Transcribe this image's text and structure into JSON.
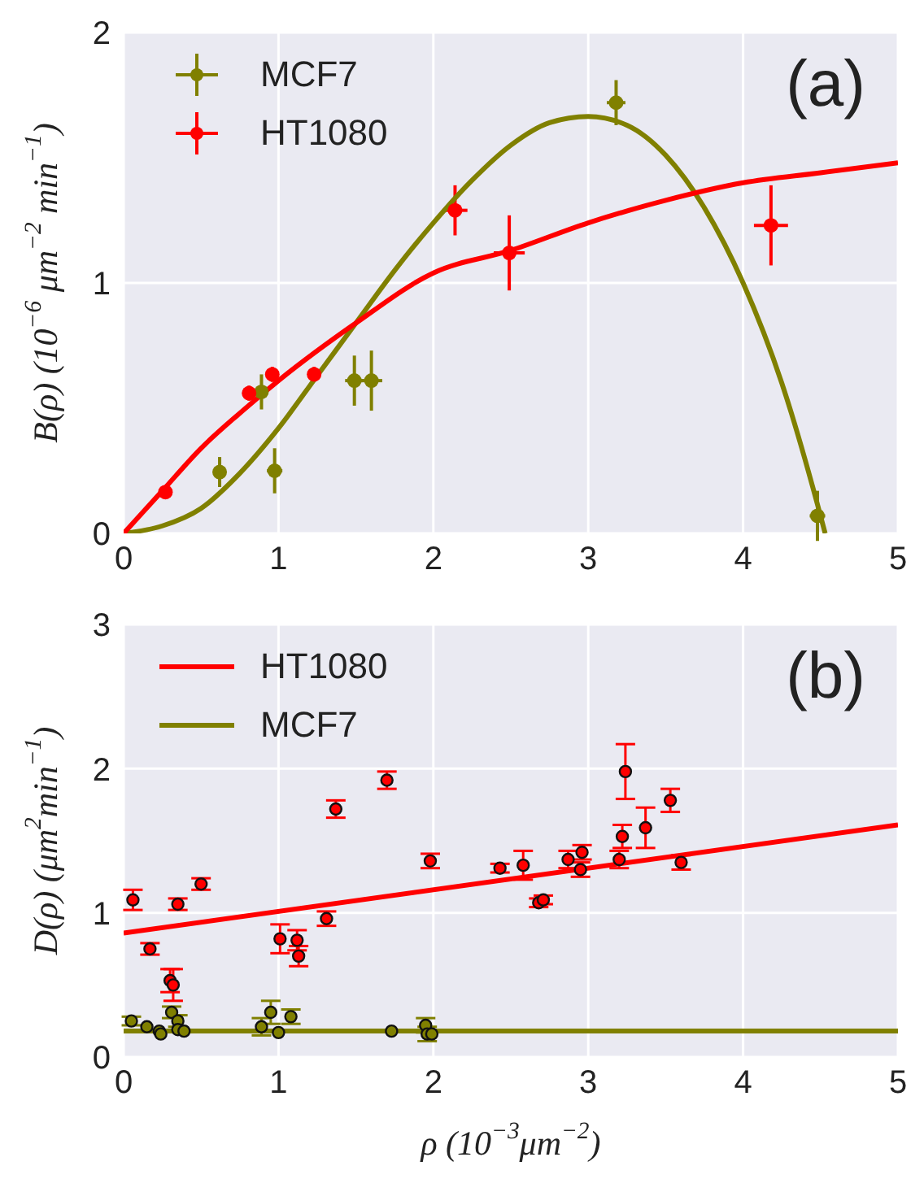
{
  "chart_data": [
    {
      "type": "scatter",
      "ylabel": "B(ρ)  (10$^{−6}$ μm$^{−2}$ min$^{−1}$)",
      "annotations": [
        "(a)"
      ],
      "xlim": [
        0,
        5
      ],
      "ylim": [
        0,
        2
      ],
      "xticks": [
        0,
        1,
        2,
        3,
        4,
        5
      ],
      "yticks": [
        0,
        1,
        2
      ],
      "grid": true,
      "legend": "top left",
      "series": [
        {
          "name": "MCF7",
          "marker": "circle",
          "color": "#808000",
          "x": [
            0.62,
            0.89,
            0.975,
            1.49,
            1.6,
            3.18,
            4.48
          ],
          "values": [
            0.245,
            0.565,
            0.25,
            0.61,
            0.61,
            1.72,
            0.07
          ],
          "errors": [
            0.06,
            0.07,
            0.09,
            0.1,
            0.12,
            0.09,
            0.1
          ],
          "xerrors": [
            null,
            null,
            0.05,
            0.06,
            0.07,
            0.06,
            0.05
          ]
        },
        {
          "name": "HT1080",
          "marker": "circle",
          "color": "#ff0000",
          "x": [
            0.27,
            0.81,
            0.96,
            1.23,
            2.14,
            2.49,
            4.18
          ],
          "values": [
            0.165,
            0.56,
            0.635,
            0.635,
            1.29,
            1.12,
            1.23
          ],
          "errors": [
            null,
            0.03,
            0.03,
            0.03,
            0.1,
            0.15,
            0.16
          ],
          "xerrors": [
            null,
            null,
            null,
            null,
            0.08,
            0.1,
            0.11
          ]
        },
        {
          "type": "line",
          "color": "#808000",
          "x": [
            0,
            0.25,
            0.5,
            0.75,
            1,
            1.25,
            1.5,
            1.75,
            2,
            2.25,
            2.5,
            2.75,
            3,
            3.25,
            3.5,
            3.75,
            4,
            4.25,
            4.5,
            4.53
          ],
          "values": [
            0,
            0.03,
            0.1,
            0.24,
            0.42,
            0.63,
            0.84,
            1.05,
            1.24,
            1.41,
            1.55,
            1.64,
            1.665,
            1.63,
            1.51,
            1.3,
            1.0,
            0.6,
            0.07,
            0
          ]
        },
        {
          "type": "line",
          "color": "#ff0000",
          "x": [
            0,
            0.25,
            0.5,
            0.75,
            1,
            1.5,
            2,
            2.5,
            3,
            3.5,
            4,
            4.5,
            5
          ],
          "values": [
            0,
            0.17,
            0.34,
            0.48,
            0.61,
            0.84,
            1.04,
            1.13,
            1.24,
            1.33,
            1.4,
            1.44,
            1.48
          ]
        }
      ]
    },
    {
      "type": "scatter",
      "ylabel": "D(ρ) (μm$^{2}$min$^{−1}$)",
      "xlabel": "ρ (10$^{−3}$μm$^{−2}$)",
      "annotations": [
        "(b)"
      ],
      "xlim": [
        0,
        5
      ],
      "ylim": [
        0,
        3
      ],
      "xticks": [
        0,
        1,
        2,
        3,
        4,
        5
      ],
      "yticks": [
        0,
        1,
        2,
        3
      ],
      "grid": true,
      "legend": "top left",
      "series": [
        {
          "marker": "circle",
          "color": "#ff0000",
          "x": [
            0.06,
            0.17,
            0.3,
            0.32,
            0.35,
            0.5,
            1.01,
            1.12,
            1.13,
            1.31,
            1.37,
            1.7,
            1.98,
            2.43,
            2.58,
            2.68,
            2.71,
            2.87,
            2.95,
            2.96,
            3.2,
            3.22,
            3.24,
            3.37,
            3.53,
            3.6
          ],
          "values": [
            1.09,
            0.75,
            0.53,
            0.5,
            1.06,
            1.2,
            0.82,
            0.81,
            0.7,
            0.96,
            1.72,
            1.92,
            1.36,
            1.31,
            1.33,
            1.07,
            1.09,
            1.37,
            1.3,
            1.42,
            1.37,
            1.53,
            1.98,
            1.59,
            1.78,
            1.35
          ],
          "errors": [
            0.07,
            0.04,
            0.08,
            0.11,
            0.04,
            0.04,
            0.1,
            0.07,
            0.07,
            0.05,
            0.06,
            0.06,
            0.05,
            0.03,
            0.1,
            0.03,
            0.03,
            0.06,
            0.05,
            0.05,
            0.06,
            0.08,
            0.19,
            0.14,
            0.08,
            0.05
          ]
        },
        {
          "marker": "circle",
          "color": "#808000",
          "x": [
            0.05,
            0.15,
            0.23,
            0.24,
            0.31,
            0.35,
            0.35,
            0.39,
            0.89,
            0.95,
            1.0,
            1.08,
            1.73,
            1.95,
            1.96,
            1.99
          ],
          "values": [
            0.25,
            0.21,
            0.18,
            0.16,
            0.31,
            0.25,
            0.19,
            0.18,
            0.21,
            0.31,
            0.17,
            0.28,
            0.18,
            0.22,
            0.16,
            0.16
          ],
          "errors": [
            0.03,
            null,
            null,
            null,
            0.04,
            0.04,
            null,
            null,
            0.06,
            0.08,
            null,
            0.05,
            null,
            0.05,
            0.05,
            null
          ]
        },
        {
          "name": "HT1080",
          "type": "line",
          "color": "#ff0000",
          "x": [
            0,
            5
          ],
          "values": [
            0.86,
            1.61
          ]
        },
        {
          "name": "MCF7",
          "type": "line",
          "color": "#808000",
          "x": [
            0,
            5
          ],
          "values": [
            0.18,
            0.18
          ]
        }
      ]
    }
  ]
}
